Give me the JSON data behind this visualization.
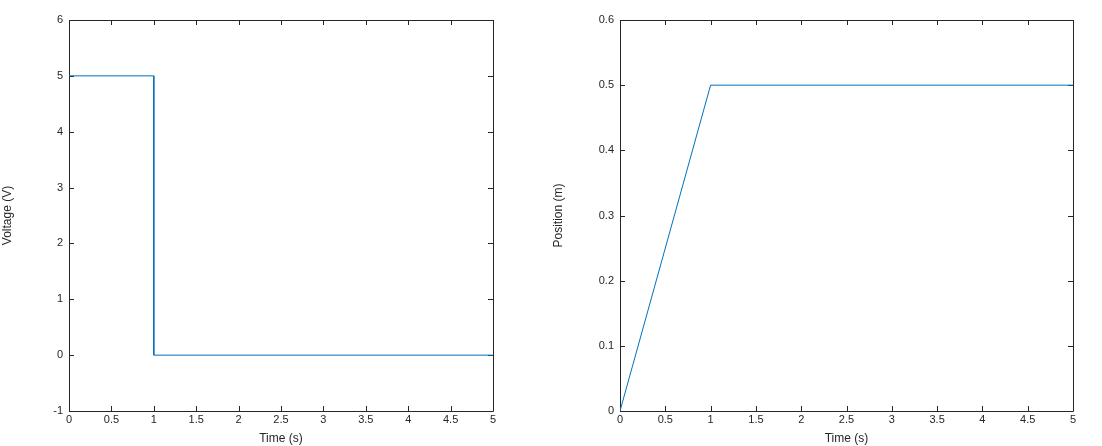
{
  "chart_data": [
    {
      "type": "line",
      "xlabel": "Time (s)",
      "ylabel": "Voltage (V)",
      "xlim": [
        0,
        5
      ],
      "ylim": [
        -1,
        6
      ],
      "xticks": [
        0,
        0.5,
        1,
        1.5,
        2,
        2.5,
        3,
        3.5,
        4,
        4.5,
        5
      ],
      "yticks": [
        -1,
        0,
        1,
        2,
        3,
        4,
        5,
        6
      ],
      "marker": "none",
      "series": [
        {
          "color": "#0072bd",
          "x": [
            0,
            1,
            1,
            5
          ],
          "values": [
            5,
            5,
            0,
            0
          ]
        }
      ]
    },
    {
      "type": "line",
      "xlabel": "Time (s)",
      "ylabel": "Position (m)",
      "xlim": [
        0,
        5
      ],
      "ylim": [
        0,
        0.6
      ],
      "xticks": [
        0,
        0.5,
        1,
        1.5,
        2,
        2.5,
        3,
        3.5,
        4,
        4.5,
        5
      ],
      "yticks": [
        0,
        0.1,
        0.2,
        0.3,
        0.4,
        0.5,
        0.6
      ],
      "marker": "none",
      "series": [
        {
          "color": "#0072bd",
          "x": [
            0,
            1,
            5
          ],
          "values": [
            0,
            0.5,
            0.5
          ]
        }
      ]
    }
  ]
}
